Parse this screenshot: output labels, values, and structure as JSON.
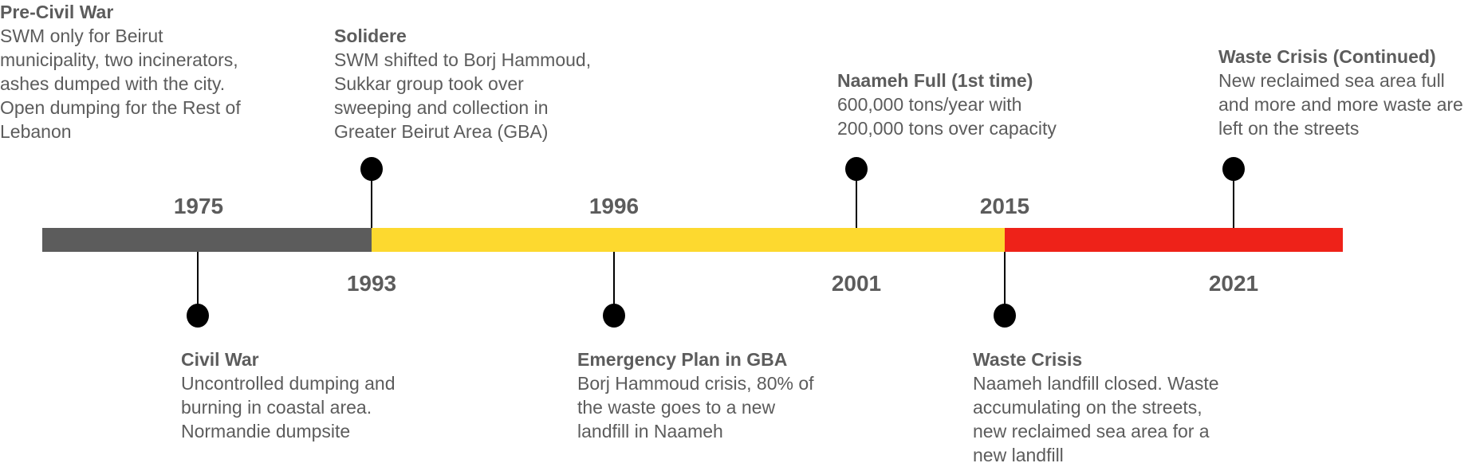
{
  "colors": {
    "period_1": "#5c5c5c",
    "period_2": "#fdd92f",
    "period_3": "#ee2219",
    "pin": "#000000",
    "text": "#5c5c5c"
  },
  "years": [
    "1975",
    "1993",
    "1996",
    "2001",
    "2015",
    "2021"
  ],
  "events": [
    {
      "title": "Pre-Civil War",
      "lines": [
        "SWM only for Beirut",
        "municipality, two incinerators,",
        "ashes dumped with the city.",
        "Open dumping for the Rest of",
        "Lebanon"
      ]
    },
    {
      "title": "Civil War",
      "lines": [
        "Uncontrolled dumping and",
        "burning in coastal area.",
        "Normandie dumpsite"
      ]
    },
    {
      "title": "Solidere",
      "lines": [
        "SWM shifted to Borj Hammoud,",
        "Sukkar group took over",
        "sweeping and collection in",
        "Greater Beirut Area (GBA)"
      ]
    },
    {
      "title": "Emergency Plan in GBA",
      "lines": [
        "Borj Hammoud crisis, 80% of",
        "the waste goes to a new",
        "landfill in Naameh"
      ]
    },
    {
      "title": "Naameh Full (1st time)",
      "lines": [
        "600,000 tons/year with",
        "200,000 tons over capacity"
      ]
    },
    {
      "title": "Waste Crisis",
      "lines": [
        "Naameh landfill closed. Waste",
        "accumulating on the streets,",
        "new reclaimed sea area for a",
        "new landfill"
      ]
    },
    {
      "title": "Waste Crisis (Continued)",
      "lines": [
        "New reclaimed sea area full",
        "and more and more waste are",
        "left on the streets"
      ]
    }
  ]
}
